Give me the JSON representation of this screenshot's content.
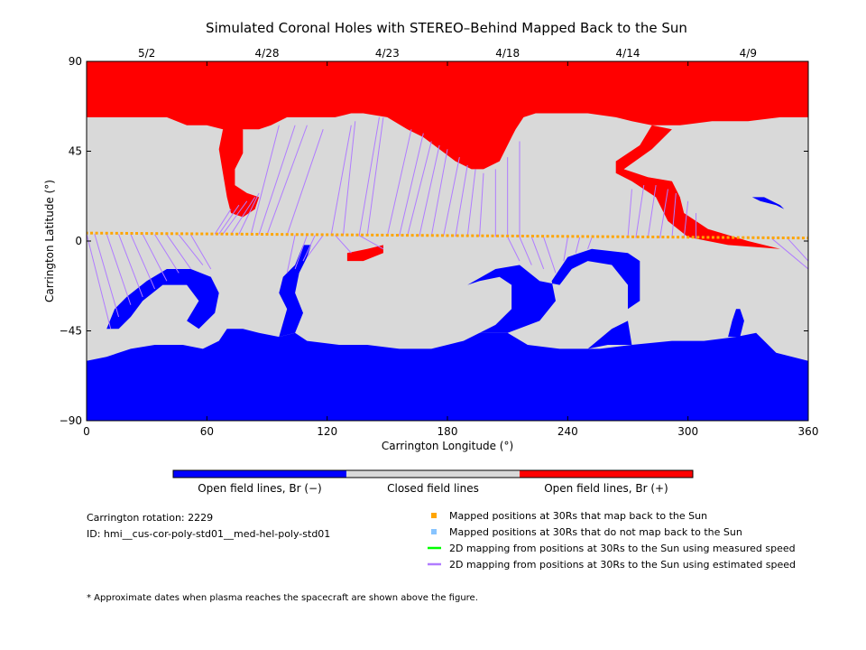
{
  "chart_data": {
    "type": "heatmap",
    "title": "Simulated Coronal Holes with STEREO–Behind Mapped Back to the Sun",
    "xlabel": "Carrington Longitude (°)",
    "ylabel": "Carrington Latitude (°)",
    "xlim": [
      0,
      360
    ],
    "ylim": [
      -90,
      90
    ],
    "x_ticks": [
      "0",
      "60",
      "120",
      "180",
      "240",
      "300",
      "360"
    ],
    "y_ticks": [
      "90",
      "45",
      "0",
      "−45",
      "−90"
    ],
    "top_axis_dates": [
      {
        "label": "5/2",
        "lon": 30
      },
      {
        "label": "4/28",
        "lon": 90
      },
      {
        "label": "4/23",
        "lon": 150
      },
      {
        "label": "4/18",
        "lon": 210
      },
      {
        "label": "4/14",
        "lon": 270
      },
      {
        "label": "4/9",
        "lon": 330
      }
    ],
    "colorbar": [
      {
        "label": "Open field lines, Br (−)",
        "color": "#0000ff"
      },
      {
        "label": "Closed field lines",
        "color": "#d9d9d9"
      },
      {
        "label": "Open field lines, Br (+)",
        "color": "#ff0000"
      }
    ],
    "trajectory": {
      "name": "Mapped positions at 30Rs that map back to the Sun",
      "color": "#ffa500",
      "lat_start": 4,
      "lat_end": 1.5,
      "lon_range": [
        0,
        360
      ]
    },
    "mapping_lines": [
      {
        "lon30": 64,
        "lat30": 3.5,
        "lonSun": 72,
        "latSun": 16
      },
      {
        "lon30": 66,
        "lat30": 3.5,
        "lonSun": 76,
        "latSun": 18
      },
      {
        "lon30": 68,
        "lat30": 3.5,
        "lonSun": 80,
        "latSun": 20
      },
      {
        "lon30": 72,
        "lat30": 3.4,
        "lonSun": 84,
        "latSun": 22
      },
      {
        "lon30": 76,
        "lat30": 3.4,
        "lonSun": 86,
        "latSun": 24
      },
      {
        "lon30": 82,
        "lat30": 3.3,
        "lonSun": 96,
        "latSun": 58
      },
      {
        "lon30": 86,
        "lat30": 3.3,
        "lonSun": 104,
        "latSun": 58
      },
      {
        "lon30": 90,
        "lat30": 3.2,
        "lonSun": 110,
        "latSun": 58
      },
      {
        "lon30": 100,
        "lat30": 3.1,
        "lonSun": 118,
        "latSun": 56
      },
      {
        "lon30": 122,
        "lat30": 2.9,
        "lonSun": 132,
        "latSun": 58
      },
      {
        "lon30": 128,
        "lat30": 2.9,
        "lonSun": 134,
        "latSun": 60
      },
      {
        "lon30": 136,
        "lat30": 2.8,
        "lonSun": 146,
        "latSun": 62
      },
      {
        "lon30": 140,
        "lat30": 2.7,
        "lonSun": 148,
        "latSun": 62
      },
      {
        "lon30": 150,
        "lat30": 2.6,
        "lonSun": 162,
        "latSun": 56
      },
      {
        "lon30": 156,
        "lat30": 2.6,
        "lonSun": 168,
        "latSun": 54
      },
      {
        "lon30": 160,
        "lat30": 2.5,
        "lonSun": 172,
        "latSun": 50
      },
      {
        "lon30": 166,
        "lat30": 2.5,
        "lonSun": 176,
        "latSun": 48
      },
      {
        "lon30": 172,
        "lat30": 2.4,
        "lonSun": 180,
        "latSun": 46
      },
      {
        "lon30": 178,
        "lat30": 2.4,
        "lonSun": 186,
        "latSun": 42
      },
      {
        "lon30": 184,
        "lat30": 2.3,
        "lonSun": 190,
        "latSun": 38
      },
      {
        "lon30": 190,
        "lat30": 2.3,
        "lonSun": 194,
        "latSun": 36
      },
      {
        "lon30": 196,
        "lat30": 2.2,
        "lonSun": 198,
        "latSun": 34
      },
      {
        "lon30": 204,
        "lat30": 2.1,
        "lonSun": 204,
        "latSun": 36
      },
      {
        "lon30": 210,
        "lat30": 2.1,
        "lonSun": 210,
        "latSun": 42
      },
      {
        "lon30": 216,
        "lat30": 2.0,
        "lonSun": 216,
        "latSun": 50
      },
      {
        "lon30": 270,
        "lat30": 1.6,
        "lonSun": 272,
        "latSun": 26
      },
      {
        "lon30": 274,
        "lat30": 1.6,
        "lonSun": 278,
        "latSun": 28
      },
      {
        "lon30": 280,
        "lat30": 1.5,
        "lonSun": 284,
        "latSun": 28
      },
      {
        "lon30": 286,
        "lat30": 1.5,
        "lonSun": 290,
        "latSun": 26
      },
      {
        "lon30": 292,
        "lat30": 1.4,
        "lonSun": 294,
        "latSun": 24
      },
      {
        "lon30": 298,
        "lat30": 1.4,
        "lonSun": 300,
        "latSun": 20
      },
      {
        "lon30": 304,
        "lat30": 1.3,
        "lonSun": 304,
        "latSun": 14
      },
      {
        "lon30": 0,
        "lat30": 3.5,
        "lonSun": 12,
        "latSun": -44
      },
      {
        "lon30": 4,
        "lat30": 3.5,
        "lonSun": 16,
        "latSun": -38
      },
      {
        "lon30": 10,
        "lat30": 3.5,
        "lonSun": 22,
        "latSun": -32
      },
      {
        "lon30": 16,
        "lat30": 3.4,
        "lonSun": 28,
        "latSun": -28
      },
      {
        "lon30": 22,
        "lat30": 3.4,
        "lonSun": 34,
        "latSun": -24
      },
      {
        "lon30": 28,
        "lat30": 3.3,
        "lonSun": 40,
        "latSun": -20
      },
      {
        "lon30": 34,
        "lat30": 3.3,
        "lonSun": 46,
        "latSun": -16
      },
      {
        "lon30": 40,
        "lat30": 3.2,
        "lonSun": 52,
        "latSun": -14
      },
      {
        "lon30": 46,
        "lat30": 3.2,
        "lonSun": 58,
        "latSun": -12
      },
      {
        "lon30": 52,
        "lat30": 3.1,
        "lonSun": 62,
        "latSun": -14
      },
      {
        "lon30": 104,
        "lat30": 3.0,
        "lonSun": 100,
        "latSun": -16
      },
      {
        "lon30": 110,
        "lat30": 3.0,
        "lonSun": 104,
        "latSun": -14
      },
      {
        "lon30": 114,
        "lat30": 2.9,
        "lonSun": 108,
        "latSun": -10
      },
      {
        "lon30": 118,
        "lat30": 2.9,
        "lonSun": 110,
        "latSun": -8
      },
      {
        "lon30": 124,
        "lat30": 2.9,
        "lonSun": 132,
        "latSun": -6
      },
      {
        "lon30": 136,
        "lat30": 2.8,
        "lonSun": 148,
        "latSun": -4
      },
      {
        "lon30": 210,
        "lat30": 2.1,
        "lonSun": 216,
        "latSun": -10
      },
      {
        "lon30": 216,
        "lat30": 2.0,
        "lonSun": 222,
        "latSun": -12
      },
      {
        "lon30": 222,
        "lat30": 2.0,
        "lonSun": 228,
        "latSun": -14
      },
      {
        "lon30": 228,
        "lat30": 1.9,
        "lonSun": 234,
        "latSun": -16
      },
      {
        "lon30": 240,
        "lat30": 1.8,
        "lonSun": 238,
        "latSun": -10
      },
      {
        "lon30": 246,
        "lat30": 1.8,
        "lonSun": 244,
        "latSun": -6
      },
      {
        "lon30": 252,
        "lat30": 1.7,
        "lonSun": 250,
        "latSun": -4
      },
      {
        "lon30": 342,
        "lat30": 1.1,
        "lonSun": 360,
        "latSun": -14
      },
      {
        "lon30": 350,
        "lat30": 1.0,
        "lonSun": 360,
        "latSun": -10
      }
    ],
    "regions": {
      "north_polar_red_boundary": [
        [
          0,
          62
        ],
        [
          20,
          62
        ],
        [
          40,
          62
        ],
        [
          50,
          58
        ],
        [
          60,
          58
        ],
        [
          68,
          56
        ],
        [
          72,
          55
        ],
        [
          78,
          56
        ],
        [
          86,
          56
        ],
        [
          92,
          58
        ],
        [
          100,
          62
        ],
        [
          112,
          62
        ],
        [
          124,
          62
        ],
        [
          132,
          64
        ],
        [
          138,
          64
        ],
        [
          150,
          62
        ],
        [
          160,
          56
        ],
        [
          168,
          52
        ],
        [
          176,
          46
        ],
        [
          184,
          40
        ],
        [
          192,
          36
        ],
        [
          198,
          36
        ],
        [
          206,
          40
        ],
        [
          212,
          52
        ],
        [
          214,
          56
        ],
        [
          218,
          62
        ],
        [
          224,
          64
        ],
        [
          236,
          64
        ],
        [
          250,
          64
        ],
        [
          264,
          62
        ],
        [
          272,
          60
        ],
        [
          282,
          58
        ],
        [
          296,
          58
        ],
        [
          312,
          60
        ],
        [
          330,
          60
        ],
        [
          346,
          62
        ],
        [
          360,
          62
        ]
      ],
      "south_polar_blue_boundary": [
        [
          0,
          -60
        ],
        [
          10,
          -58
        ],
        [
          22,
          -54
        ],
        [
          34,
          -52
        ],
        [
          48,
          -52
        ],
        [
          58,
          -54
        ],
        [
          66,
          -50
        ],
        [
          70,
          -44
        ],
        [
          78,
          -44
        ],
        [
          86,
          -46
        ],
        [
          96,
          -48
        ],
        [
          104,
          -46
        ],
        [
          110,
          -50
        ],
        [
          126,
          -52
        ],
        [
          140,
          -52
        ],
        [
          156,
          -54
        ],
        [
          172,
          -54
        ],
        [
          188,
          -50
        ],
        [
          196,
          -46
        ],
        [
          210,
          -46
        ],
        [
          220,
          -52
        ],
        [
          236,
          -54
        ],
        [
          256,
          -54
        ],
        [
          272,
          -52
        ],
        [
          292,
          -50
        ],
        [
          308,
          -50
        ],
        [
          324,
          -48
        ],
        [
          334,
          -46
        ],
        [
          344,
          -56
        ],
        [
          360,
          -60
        ]
      ]
    }
  },
  "info": {
    "rotation": "Carrington rotation: 2229",
    "id": "ID: hmi__cus-cor-poly-std01__med-hel-poly-std01",
    "footnote": "* Approximate dates when plasma reaches the spacecraft are shown above the figure."
  },
  "legend": [
    {
      "label": "Mapped positions at 30Rs that map back to the Sun",
      "color": "#ffa500",
      "kind": "square"
    },
    {
      "label": "Mapped positions at 30Rs that do not map back to the Sun",
      "color": "#87c4ff",
      "kind": "square"
    },
    {
      "label": "2D mapping from positions at 30Rs to the Sun using measured speed",
      "color": "#00ff00",
      "kind": "line"
    },
    {
      "label": "2D mapping from positions at 30Rs to the Sun using estimated speed",
      "color": "#b07cff",
      "kind": "line"
    }
  ]
}
